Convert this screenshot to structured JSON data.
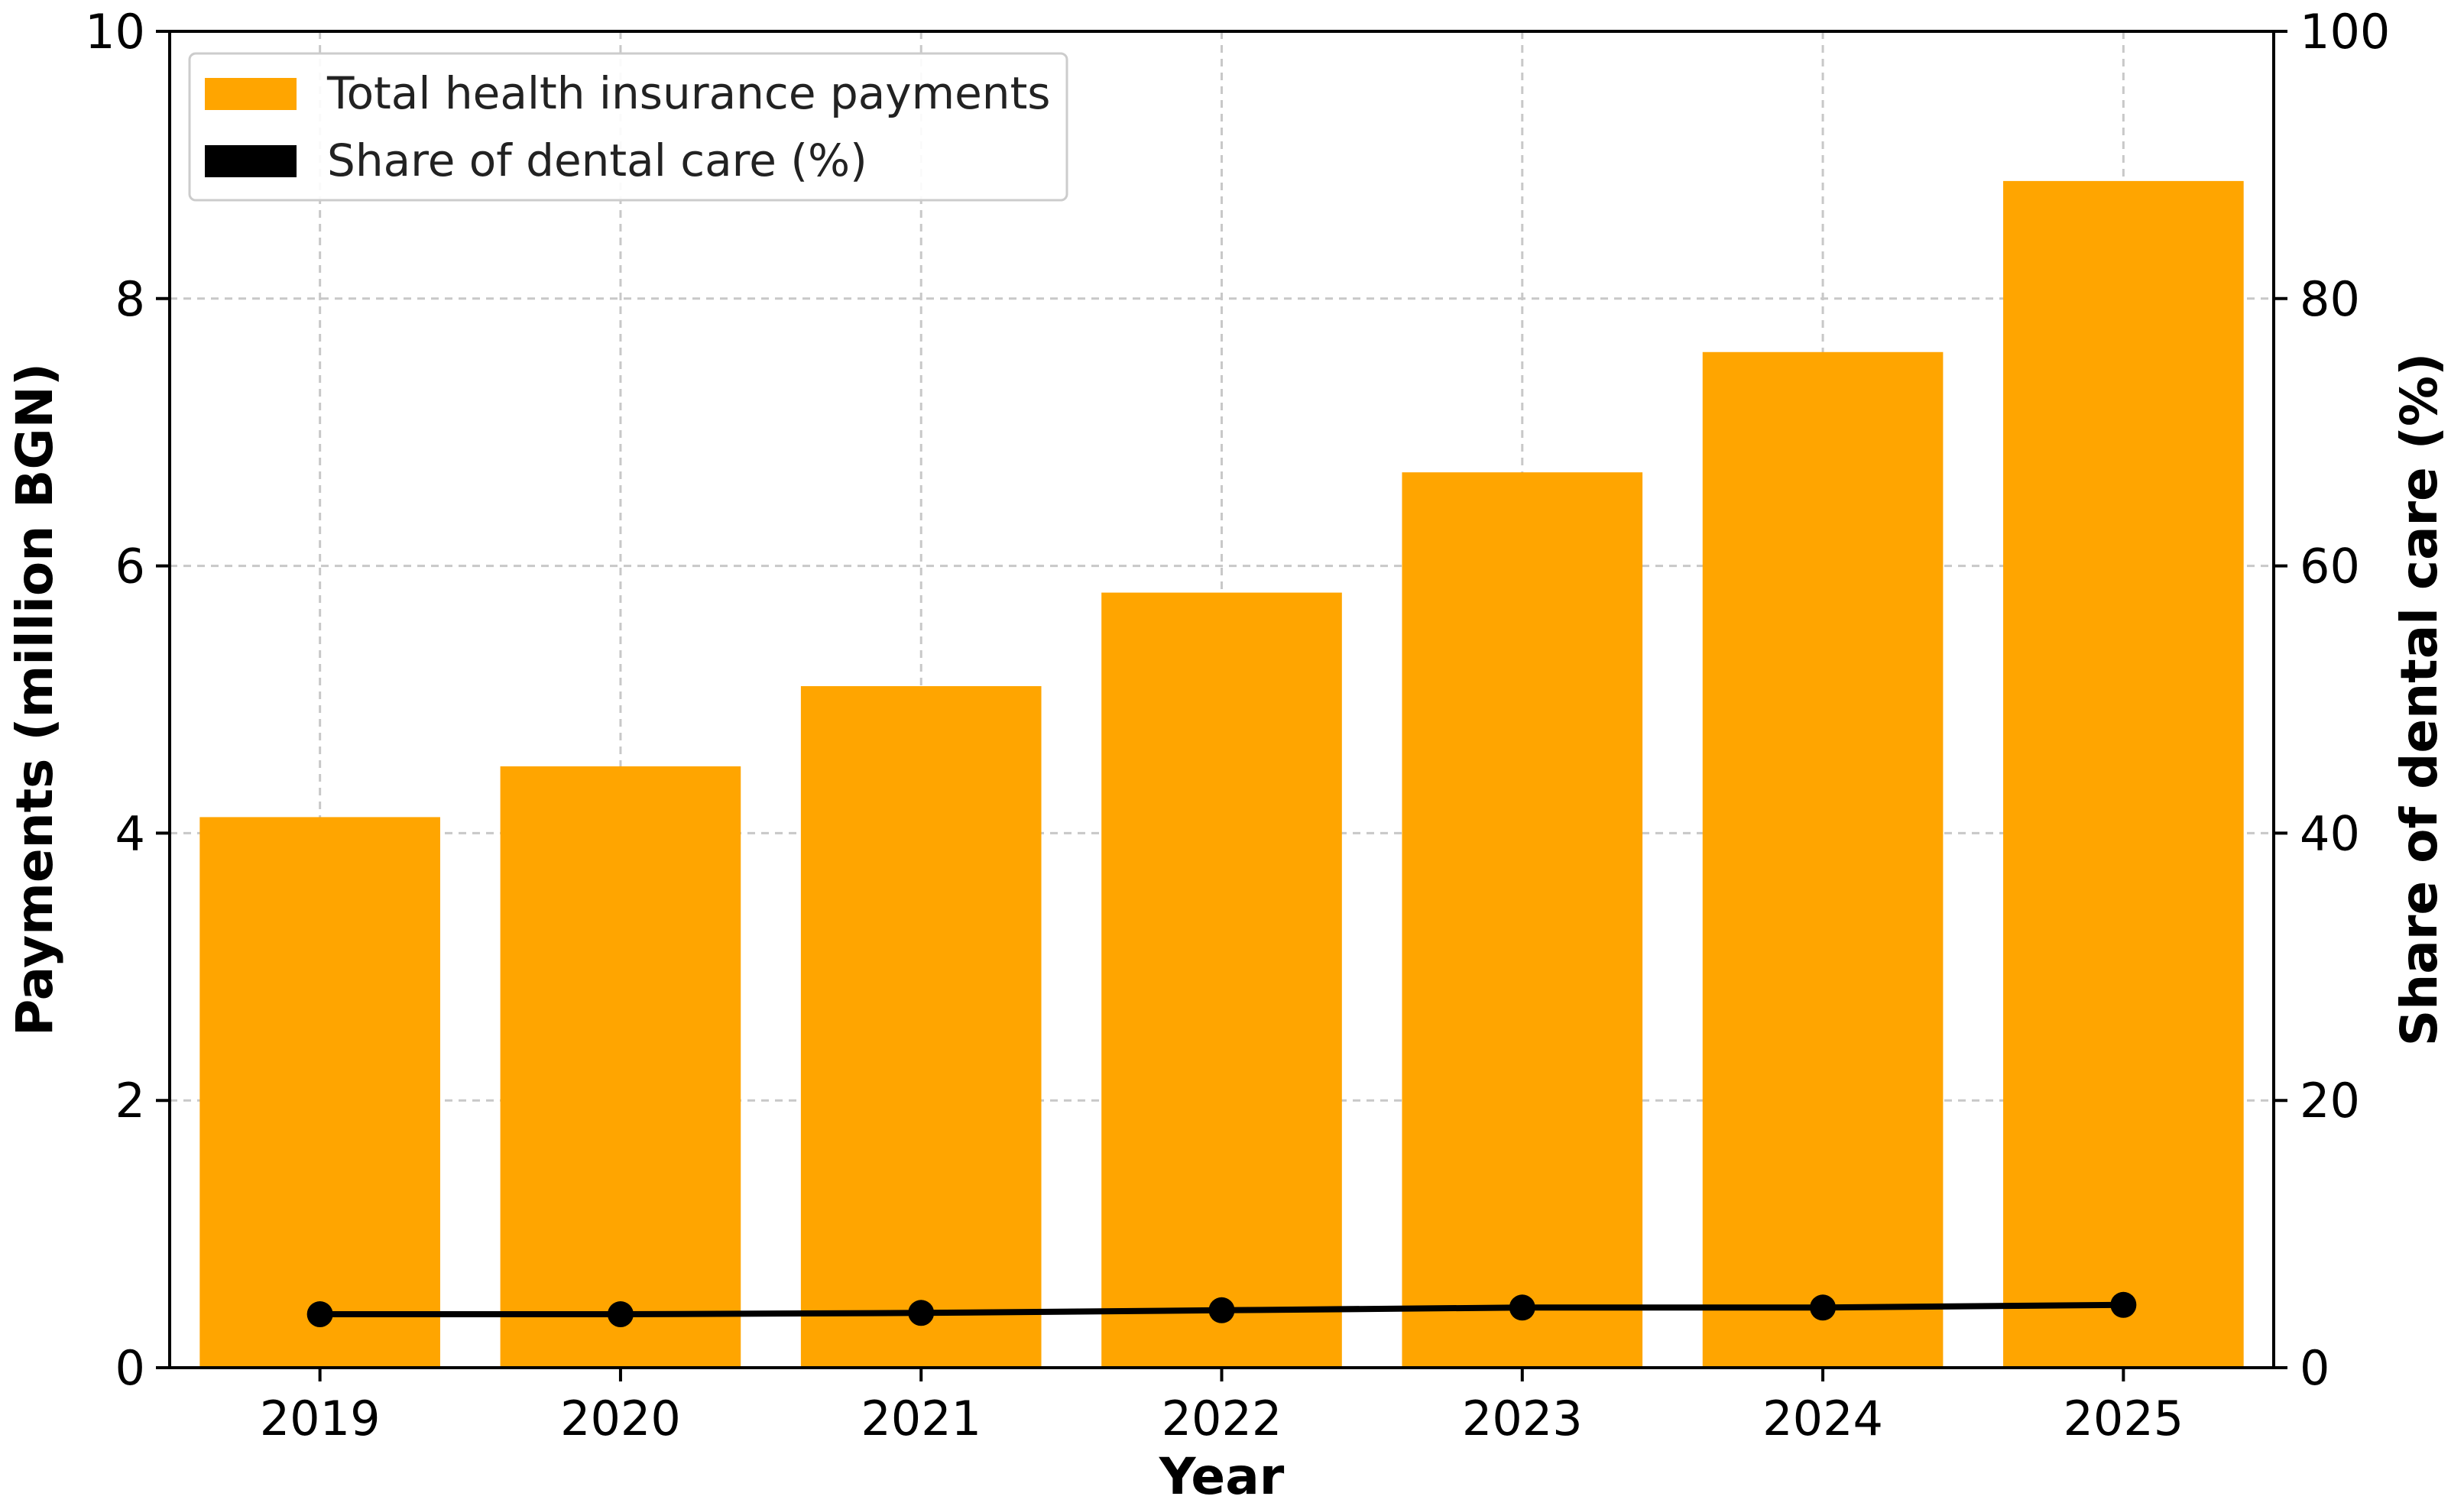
{
  "chart_data": {
    "type": "bar",
    "categories": [
      "2019",
      "2020",
      "2021",
      "2022",
      "2023",
      "2024",
      "2025"
    ],
    "series": [
      {
        "name": "Total health insurance payments",
        "type": "bar",
        "axis": "left",
        "color": "#FFA500",
        "values": [
          4.12,
          4.5,
          5.1,
          5.8,
          6.7,
          7.6,
          8.88
        ]
      },
      {
        "name": "Share of dental care (%)",
        "type": "line",
        "axis": "right",
        "color": "#000000",
        "values": [
          4.0,
          4.0,
          4.1,
          4.3,
          4.5,
          4.5,
          4.7
        ]
      }
    ],
    "xlabel": "Year",
    "ylabel": "Payments (million BGN)",
    "ylabel_right": "Share of dental care (%)",
    "ylim": [
      0,
      10
    ],
    "ylim_right": [
      0,
      100
    ],
    "yticks": [
      "0",
      "2",
      "4",
      "6",
      "8",
      "10"
    ],
    "yticks_right": [
      "0",
      "20",
      "40",
      "60",
      "80",
      "100"
    ],
    "grid": true,
    "legend": "top-left"
  }
}
